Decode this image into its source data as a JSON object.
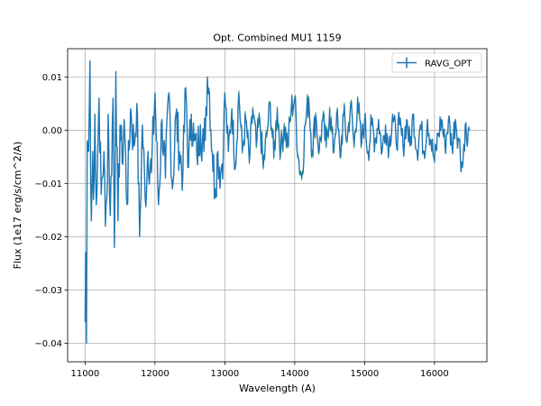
{
  "chart_data": {
    "type": "line",
    "title": "Opt. Combined MU1 1159",
    "xlabel": "Wavelength (A)",
    "ylabel": "Flux (1e17 erg/s/cm^2/A)",
    "xlim": [
      10750,
      16750
    ],
    "ylim": [
      -0.0435,
      0.0153
    ],
    "xticks": [
      11000,
      12000,
      13000,
      14000,
      15000,
      16000
    ],
    "xtick_labels": [
      "11000",
      "12000",
      "13000",
      "14000",
      "15000",
      "16000"
    ],
    "yticks": [
      -0.04,
      -0.03,
      -0.02,
      -0.01,
      0.0,
      0.01
    ],
    "ytick_labels": [
      "−0.04",
      "−0.03",
      "−0.02",
      "−0.01",
      "0.00",
      "0.01"
    ],
    "grid": true,
    "legend": {
      "position": "top-right"
    },
    "colors": {
      "series": "#1f77b4",
      "errorbars": "#2ca02c"
    },
    "series": [
      {
        "name": "RAVG_OPT",
        "x_start": 11000,
        "x_step": 10,
        "x_end": 16500,
        "y_anchors": [
          [
            11000,
            -0.036
          ],
          [
            11010,
            -0.023
          ],
          [
            11020,
            -0.04
          ],
          [
            11030,
            -0.002
          ],
          [
            11050,
            -0.004
          ],
          [
            11060,
            0.004
          ],
          [
            11070,
            0.013
          ],
          [
            11080,
            -0.01
          ],
          [
            11090,
            -0.017
          ],
          [
            11110,
            -0.004
          ],
          [
            11120,
            -0.013
          ],
          [
            11140,
            0.003
          ],
          [
            11150,
            -0.008
          ],
          [
            11160,
            -0.014
          ],
          [
            11200,
            0.006
          ],
          [
            11230,
            -0.012
          ],
          [
            11270,
            -0.004
          ],
          [
            11290,
            -0.018
          ],
          [
            11310,
            -0.013
          ],
          [
            11330,
            0.003
          ],
          [
            11360,
            -0.016
          ],
          [
            11400,
            0.006
          ],
          [
            11420,
            -0.022
          ],
          [
            11440,
            0.011
          ],
          [
            11470,
            -0.017
          ],
          [
            11500,
            0.001
          ],
          [
            11530,
            -0.006
          ],
          [
            11560,
            0.002
          ],
          [
            11600,
            -0.014
          ],
          [
            11650,
            0.004
          ],
          [
            11700,
            -0.003
          ],
          [
            11740,
            0.005
          ],
          [
            11780,
            -0.02
          ],
          [
            11820,
            0.001
          ],
          [
            11860,
            -0.013
          ],
          [
            11900,
            -0.004
          ],
          [
            11950,
            -0.008
          ],
          [
            12000,
            0.007
          ],
          [
            12050,
            -0.014
          ],
          [
            12100,
            0.002
          ],
          [
            12150,
            -0.009
          ],
          [
            12200,
            0.007
          ],
          [
            12250,
            -0.011
          ],
          [
            12300,
            0.003
          ],
          [
            12350,
            -0.004
          ],
          [
            12400,
            -0.008
          ],
          [
            12440,
            0.008
          ],
          [
            12480,
            -0.007
          ],
          [
            12520,
            0.003
          ],
          [
            12560,
            -0.002
          ],
          [
            12600,
            -0.005
          ],
          [
            12650,
            0.001
          ],
          [
            12700,
            -0.004
          ],
          [
            12750,
            0.01
          ],
          [
            12780,
            0.007
          ],
          [
            12820,
            -0.004
          ],
          [
            12860,
            -0.011
          ],
          [
            12900,
            -0.004
          ],
          [
            12940,
            -0.008
          ],
          [
            12980,
            -0.003
          ],
          [
            13000,
            0.007
          ],
          [
            13050,
            -0.004
          ],
          [
            13100,
            0.004
          ],
          [
            13150,
            -0.007
          ],
          [
            13200,
            0.007
          ],
          [
            13250,
            -0.004
          ],
          [
            13300,
            0.002
          ],
          [
            13350,
            -0.006
          ],
          [
            13400,
            0.004
          ],
          [
            13450,
            -0.003
          ],
          [
            13500,
            0.002
          ],
          [
            13550,
            -0.007
          ],
          [
            13600,
            -0.001
          ],
          [
            13650,
            0.005
          ],
          [
            13700,
            -0.005
          ],
          [
            13750,
            0.004
          ],
          [
            13800,
            -0.004
          ],
          [
            13850,
            0.001
          ],
          [
            13900,
            -0.003
          ],
          [
            13950,
            0.004
          ],
          [
            14000,
            0.006
          ],
          [
            14050,
            -0.005
          ],
          [
            14100,
            -0.009
          ],
          [
            14150,
            0.001
          ],
          [
            14200,
            0.006
          ],
          [
            14250,
            -0.004
          ],
          [
            14300,
            0.003
          ],
          [
            14350,
            -0.004
          ],
          [
            14400,
            0.002
          ],
          [
            14450,
            -0.003
          ],
          [
            14500,
            0.004
          ],
          [
            14550,
            -0.004
          ],
          [
            14600,
            0.003
          ],
          [
            14650,
            -0.005
          ],
          [
            14700,
            0.003
          ],
          [
            14750,
            -0.002
          ],
          [
            14800,
            0.005
          ],
          [
            14850,
            -0.003
          ],
          [
            14900,
            0.006
          ],
          [
            14950,
            -0.003
          ],
          [
            15000,
            0.002
          ],
          [
            15050,
            -0.004
          ],
          [
            15100,
            0.001
          ],
          [
            15150,
            -0.002
          ],
          [
            15200,
            0.002
          ],
          [
            15250,
            -0.004
          ],
          [
            15300,
            0.001
          ],
          [
            15350,
            -0.003
          ],
          [
            15400,
            0.003
          ],
          [
            15450,
            -0.002
          ],
          [
            15500,
            0.001
          ],
          [
            15550,
            -0.003
          ],
          [
            15600,
            0.002
          ],
          [
            15650,
            -0.003
          ],
          [
            15700,
            0.003
          ],
          [
            15750,
            -0.004
          ],
          [
            15800,
            0.001
          ],
          [
            15850,
            -0.004
          ],
          [
            15900,
            0.002
          ],
          [
            15950,
            -0.002
          ],
          [
            16000,
            -0.006
          ],
          [
            16050,
            -0.001
          ],
          [
            16100,
            0.002
          ],
          [
            16150,
            -0.003
          ],
          [
            16200,
            0.002
          ],
          [
            16250,
            -0.003
          ],
          [
            16300,
            0.002
          ],
          [
            16350,
            -0.002
          ],
          [
            16400,
            -0.007
          ],
          [
            16440,
            0.001
          ],
          [
            16470,
            -0.003
          ],
          [
            16500,
            0.0
          ]
        ],
        "errorbar_range": [
          13150,
          14950
        ],
        "errorbar_halfwidth": 0.0004
      }
    ]
  }
}
